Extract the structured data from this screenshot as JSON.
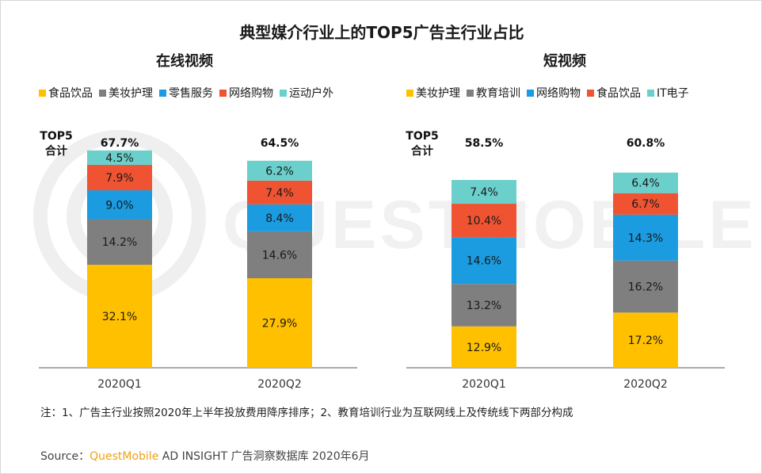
{
  "title": "典型媒介行业上的TOP5广告主行业占比",
  "note": "注：1、广告主行业按照2020年上半年投放费用降序排序；2、教育培训行业为互联网线上及传统线下两部分构成",
  "source": {
    "prefix": "Source：",
    "brand": "QuestMobile",
    "suffix": " AD INSIGHT 广告洞察数据库 2020年6月"
  },
  "watermark": "QUESTMOBILE",
  "chart_data": [
    {
      "type": "bar",
      "stacked": true,
      "title": "在线视频",
      "total_label_line1": "TOP5",
      "total_label_line2": "合计",
      "categories": [
        "2020Q1",
        "2020Q2"
      ],
      "totals": [
        "67.7%",
        "64.5%"
      ],
      "series": [
        {
          "name": "食品饮品",
          "color": "#FFC000",
          "values": [
            32.1,
            27.9
          ]
        },
        {
          "name": "美妆护理",
          "color": "#7F7F7F",
          "values": [
            14.2,
            14.6
          ]
        },
        {
          "name": "零售服务",
          "color": "#1B9BE0",
          "values": [
            9.0,
            8.4
          ]
        },
        {
          "name": "网络购物",
          "color": "#EF5331",
          "values": [
            7.9,
            7.4
          ]
        },
        {
          "name": "运动户外",
          "color": "#6BCFCB",
          "values": [
            4.5,
            6.2
          ]
        }
      ],
      "ylim": [
        0,
        100
      ],
      "grid": false,
      "legend": "top"
    },
    {
      "type": "bar",
      "stacked": true,
      "title": "短视频",
      "total_label_line1": "TOP5",
      "total_label_line2": "合计",
      "categories": [
        "2020Q1",
        "2020Q2"
      ],
      "totals": [
        "58.5%",
        "60.8%"
      ],
      "series": [
        {
          "name": "美妆护理",
          "color": "#FFC000",
          "values": [
            12.9,
            17.2
          ]
        },
        {
          "name": "教育培训",
          "color": "#7F7F7F",
          "values": [
            13.2,
            16.2
          ]
        },
        {
          "name": "网络购物",
          "color": "#1B9BE0",
          "values": [
            14.6,
            14.3
          ]
        },
        {
          "name": "食品饮品",
          "color": "#EF5331",
          "values": [
            10.4,
            6.7
          ]
        },
        {
          "name": "IT电子",
          "color": "#6BCFCB",
          "values": [
            7.4,
            6.4
          ]
        }
      ],
      "ylim": [
        0,
        100
      ],
      "grid": false,
      "legend": "top"
    }
  ]
}
